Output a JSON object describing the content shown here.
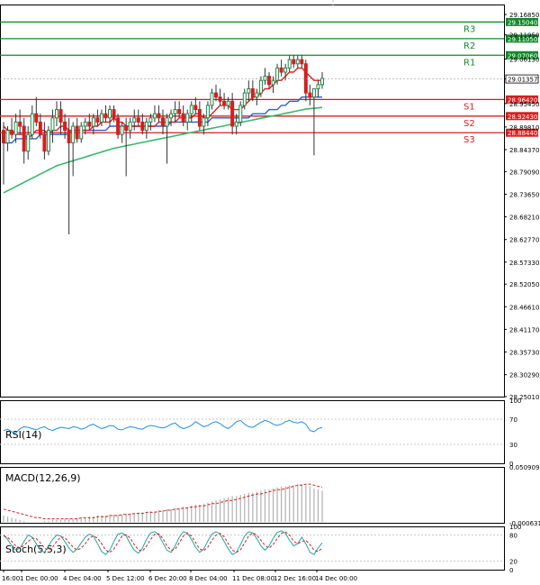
{
  "colors": {
    "background": "#ffffff",
    "axis": "#000000",
    "grid": "#d9d9d9",
    "bull_candle": "#1e8a4c",
    "bear_candle": "#d51f1f",
    "ma_fast": "#e02020",
    "ma_mid": "#2c5fd6",
    "ma_slow": "#38b86b",
    "resistance_line": "#138a2b",
    "support_line": "#d51f1f",
    "last_price_tag": "#000000",
    "rsi_line": "#1f8fe6",
    "macd_hist": "#b0b0b0",
    "macd_signal": "#d51f1f",
    "stoch_main": "#20a4a4",
    "stoch_signal": "#d51f1f"
  },
  "chart_data": {
    "type": "candlestick",
    "price_axis": {
      "ticks": [
        "29.16850",
        "29.11950",
        "29.06130",
        "29.01357",
        "28.95450",
        "28.89810",
        "28.84370",
        "28.79090",
        "28.73650",
        "28.68210",
        "28.62770",
        "28.57330",
        "28.52050",
        "28.46610",
        "28.41170",
        "28.35730",
        "28.30290",
        "28.25010"
      ],
      "ylim": [
        28.2501,
        29.1925
      ]
    },
    "time_axis": {
      "labels": [
        "16:00",
        "1 Dec 00:00",
        "4 Dec 04:00",
        "5 Dec 12:00",
        "6 Dec 20:00",
        "8 Dec 04:00",
        "11 Dec 08:00",
        "12 Dec 16:00",
        "14 Dec 00:00"
      ]
    },
    "last_price": "29.01357",
    "levels": [
      {
        "name": "R3",
        "price": "29.15040",
        "kind": "resistance"
      },
      {
        "name": "R2",
        "price": "29.11050",
        "kind": "resistance"
      },
      {
        "name": "R1",
        "price": "29.07060",
        "kind": "resistance"
      },
      {
        "name": "S1",
        "price": "28.96420",
        "kind": "support"
      },
      {
        "name": "S2",
        "price": "28.92430",
        "kind": "support"
      },
      {
        "name": "S3",
        "price": "28.88440",
        "kind": "support"
      }
    ],
    "candles": [
      [
        28.89,
        28.91,
        28.76,
        28.86
      ],
      [
        28.86,
        28.9,
        28.84,
        28.89
      ],
      [
        28.89,
        28.92,
        28.87,
        28.88
      ],
      [
        28.88,
        28.93,
        28.86,
        28.91
      ],
      [
        28.91,
        28.94,
        28.88,
        28.9
      ],
      [
        28.9,
        28.92,
        28.81,
        28.84
      ],
      [
        28.84,
        28.9,
        28.82,
        28.88
      ],
      [
        28.88,
        28.95,
        28.87,
        28.93
      ],
      [
        28.93,
        28.97,
        28.9,
        28.91
      ],
      [
        28.91,
        28.93,
        28.87,
        28.88
      ],
      [
        28.88,
        28.91,
        28.82,
        28.84
      ],
      [
        28.84,
        28.9,
        28.83,
        28.89
      ],
      [
        28.89,
        28.94,
        28.86,
        28.92
      ],
      [
        28.92,
        28.96,
        28.9,
        28.94
      ],
      [
        28.94,
        28.96,
        28.88,
        28.91
      ],
      [
        28.91,
        28.93,
        28.87,
        28.89
      ],
      [
        28.89,
        28.92,
        28.64,
        28.86
      ],
      [
        28.86,
        28.91,
        28.78,
        28.9
      ],
      [
        28.9,
        28.92,
        28.86,
        28.87
      ],
      [
        28.87,
        28.91,
        28.86,
        28.9
      ],
      [
        28.9,
        28.92,
        28.88,
        28.91
      ],
      [
        28.91,
        28.93,
        28.89,
        28.9
      ],
      [
        28.9,
        28.93,
        28.88,
        28.92
      ],
      [
        28.92,
        28.94,
        28.9,
        28.91
      ],
      [
        28.91,
        28.94,
        28.9,
        28.93
      ],
      [
        28.93,
        28.95,
        28.91,
        28.92
      ],
      [
        28.92,
        28.95,
        28.9,
        28.94
      ],
      [
        28.94,
        28.95,
        28.91,
        28.92
      ],
      [
        28.92,
        28.93,
        28.87,
        28.88
      ],
      [
        28.88,
        28.91,
        28.86,
        28.9
      ],
      [
        28.9,
        28.92,
        28.78,
        28.89
      ],
      [
        28.89,
        28.92,
        28.87,
        28.91
      ],
      [
        28.91,
        28.94,
        28.89,
        28.92
      ],
      [
        28.92,
        28.94,
        28.9,
        28.91
      ],
      [
        28.91,
        28.93,
        28.88,
        28.89
      ],
      [
        28.89,
        28.92,
        28.87,
        28.91
      ],
      [
        28.91,
        28.93,
        28.89,
        28.92
      ],
      [
        28.92,
        28.95,
        28.91,
        28.93
      ],
      [
        28.93,
        28.95,
        28.91,
        28.92
      ],
      [
        28.92,
        28.94,
        28.88,
        28.9
      ],
      [
        28.9,
        28.93,
        28.81,
        28.92
      ],
      [
        28.92,
        28.94,
        28.9,
        28.93
      ],
      [
        28.93,
        28.96,
        28.91,
        28.94
      ],
      [
        28.94,
        28.96,
        28.92,
        28.93
      ],
      [
        28.93,
        28.95,
        28.9,
        28.91
      ],
      [
        28.91,
        28.94,
        28.89,
        28.93
      ],
      [
        28.93,
        28.96,
        28.91,
        28.95
      ],
      [
        28.95,
        28.97,
        28.93,
        28.94
      ],
      [
        28.94,
        28.96,
        28.89,
        28.9
      ],
      [
        28.9,
        28.93,
        28.88,
        28.92
      ],
      [
        28.92,
        28.96,
        28.9,
        28.95
      ],
      [
        28.95,
        28.99,
        28.94,
        28.98
      ],
      [
        28.98,
        29.0,
        28.96,
        28.97
      ],
      [
        28.97,
        28.99,
        28.95,
        28.96
      ],
      [
        28.96,
        28.98,
        28.94,
        28.95
      ],
      [
        28.95,
        28.97,
        28.94,
        28.96
      ],
      [
        28.96,
        28.98,
        28.88,
        28.9
      ],
      [
        28.9,
        28.93,
        28.88,
        28.91
      ],
      [
        28.91,
        28.96,
        28.9,
        28.95
      ],
      [
        28.95,
        28.99,
        28.94,
        28.98
      ],
      [
        28.98,
        29.01,
        28.96,
        28.99
      ],
      [
        28.99,
        29.01,
        28.96,
        28.97
      ],
      [
        28.97,
        28.99,
        28.95,
        28.98
      ],
      [
        28.98,
        29.02,
        28.97,
        29.01
      ],
      [
        29.01,
        29.04,
        29.0,
        29.02
      ],
      [
        29.02,
        29.03,
        28.99,
        29.0
      ],
      [
        29.0,
        29.02,
        28.98,
        29.01
      ],
      [
        29.01,
        29.05,
        29.0,
        29.04
      ],
      [
        29.04,
        29.06,
        29.02,
        29.03
      ],
      [
        29.03,
        29.05,
        29.01,
        29.04
      ],
      [
        29.04,
        29.07,
        29.03,
        29.06
      ],
      [
        29.06,
        29.07,
        29.04,
        29.05
      ],
      [
        29.05,
        29.07,
        29.04,
        29.06
      ],
      [
        29.06,
        29.07,
        29.04,
        29.05
      ],
      [
        29.05,
        29.06,
        28.96,
        28.98
      ],
      [
        28.98,
        29.0,
        28.95,
        28.97
      ],
      [
        28.97,
        28.99,
        28.83,
        28.99
      ],
      [
        28.99,
        29.01,
        28.97,
        29.0
      ],
      [
        29.0,
        29.03,
        28.99,
        29.015
      ]
    ],
    "ma_fast": [
      28.9,
      28.89,
      28.89,
      28.88,
      28.88,
      28.88,
      28.87,
      28.88,
      28.89,
      28.89,
      28.89,
      28.88,
      28.89,
      28.89,
      28.9,
      28.9,
      28.89,
      28.89,
      28.89,
      28.89,
      28.89,
      28.89,
      28.9,
      28.9,
      28.91,
      28.91,
      28.91,
      28.92,
      28.91,
      28.91,
      28.9,
      28.9,
      28.9,
      28.9,
      28.9,
      28.9,
      28.9,
      28.9,
      28.91,
      28.91,
      28.91,
      28.91,
      28.91,
      28.92,
      28.92,
      28.92,
      28.92,
      28.93,
      28.93,
      28.92,
      28.92,
      28.93,
      28.94,
      28.95,
      28.95,
      28.95,
      28.94,
      28.94,
      28.94,
      28.95,
      28.96,
      28.97,
      28.97,
      28.98,
      28.99,
      28.99,
      29.0,
      29.01,
      29.01,
      29.02,
      29.03,
      29.03,
      29.04,
      29.04,
      29.03,
      29.02,
      29.01,
      29.01,
      29.01
    ],
    "ma_mid": [
      28.86,
      28.86,
      28.86,
      28.87,
      28.87,
      28.87,
      28.87,
      28.87,
      28.87,
      28.88,
      28.88,
      28.88,
      28.88,
      28.88,
      28.88,
      28.88,
      28.88,
      28.89,
      28.89,
      28.89,
      28.89,
      28.89,
      28.89,
      28.89,
      28.89,
      28.89,
      28.9,
      28.9,
      28.9,
      28.9,
      28.9,
      28.9,
      28.9,
      28.9,
      28.9,
      28.9,
      28.9,
      28.9,
      28.9,
      28.9,
      28.9,
      28.91,
      28.91,
      28.91,
      28.91,
      28.91,
      28.91,
      28.91,
      28.91,
      28.91,
      28.91,
      28.92,
      28.92,
      28.92,
      28.92,
      28.92,
      28.92,
      28.92,
      28.92,
      28.92,
      28.92,
      28.93,
      28.93,
      28.93,
      28.93,
      28.94,
      28.94,
      28.94,
      28.95,
      28.95,
      28.96,
      28.96,
      28.96,
      28.97,
      28.97,
      28.97,
      28.97,
      28.97,
      28.97
    ],
    "ma_slow": [
      28.74,
      28.745,
      28.75,
      28.755,
      28.76,
      28.765,
      28.77,
      28.775,
      28.78,
      28.785,
      28.79,
      28.795,
      28.8,
      28.805,
      28.808,
      28.811,
      28.814,
      28.817,
      28.82,
      28.823,
      28.826,
      28.829,
      28.832,
      28.835,
      28.838,
      28.841,
      28.844,
      28.847,
      28.849,
      28.851,
      28.853,
      28.855,
      28.857,
      28.859,
      28.861,
      28.863,
      28.865,
      28.867,
      28.869,
      28.871,
      28.873,
      28.875,
      28.877,
      28.879,
      28.881,
      28.883,
      28.885,
      28.887,
      28.889,
      28.891,
      28.893,
      28.895,
      28.897,
      28.899,
      28.901,
      28.903,
      28.905,
      28.907,
      28.909,
      28.911,
      28.913,
      28.915,
      28.917,
      28.919,
      28.921,
      28.923,
      28.925,
      28.927,
      28.929,
      28.931,
      28.933,
      28.935,
      28.937,
      28.939,
      28.941,
      28.942,
      28.943,
      28.944,
      28.945
    ],
    "rsi": {
      "label": "RSI(14)",
      "ticks": [
        "100",
        "70",
        "30",
        "0"
      ],
      "values": [
        52,
        54,
        50,
        48,
        55,
        58,
        57,
        55,
        53,
        56,
        58,
        54,
        52,
        55,
        57,
        56,
        55,
        58,
        57,
        54,
        56,
        60,
        62,
        58,
        55,
        57,
        60,
        59,
        54,
        53,
        56,
        58,
        57,
        55,
        54,
        58,
        60,
        59,
        57,
        56,
        58,
        62,
        64,
        58,
        55,
        57,
        60,
        66,
        62,
        58,
        60,
        64,
        66,
        63,
        58,
        55,
        60,
        66,
        68,
        62,
        58,
        57,
        61,
        65,
        68,
        66,
        62,
        60,
        62,
        66,
        68,
        65,
        64,
        66,
        62,
        52,
        50,
        55,
        57
      ]
    },
    "macd": {
      "label": "MACD(12,26,9)",
      "ticks": [
        "0.050909",
        "-0.000631"
      ],
      "hist": [
        0.006,
        0.005,
        0.004,
        0.003,
        0.002,
        0.001,
        0.0,
        0.0,
        0.0,
        0.0,
        0.001,
        0.001,
        0.002,
        0.002,
        0.002,
        0.003,
        0.003,
        0.003,
        0.004,
        0.004,
        0.004,
        0.005,
        0.005,
        0.006,
        0.006,
        0.006,
        0.007,
        0.007,
        0.007,
        0.007,
        0.008,
        0.008,
        0.008,
        0.009,
        0.009,
        0.009,
        0.01,
        0.01,
        0.011,
        0.011,
        0.012,
        0.012,
        0.013,
        0.013,
        0.014,
        0.014,
        0.015,
        0.016,
        0.016,
        0.017,
        0.018,
        0.019,
        0.02,
        0.021,
        0.022,
        0.023,
        0.024,
        0.024,
        0.025,
        0.026,
        0.027,
        0.027,
        0.028,
        0.029,
        0.03,
        0.03,
        0.031,
        0.032,
        0.033,
        0.033,
        0.034,
        0.034,
        0.035,
        0.035,
        0.034,
        0.033,
        0.031,
        0.03,
        0.029
      ],
      "signal": [
        0.012,
        0.011,
        0.01,
        0.009,
        0.008,
        0.007,
        0.006,
        0.005,
        0.004,
        0.004,
        0.003,
        0.003,
        0.003,
        0.003,
        0.003,
        0.003,
        0.003,
        0.003,
        0.003,
        0.004,
        0.004,
        0.004,
        0.004,
        0.005,
        0.005,
        0.005,
        0.006,
        0.006,
        0.006,
        0.007,
        0.007,
        0.007,
        0.008,
        0.008,
        0.008,
        0.009,
        0.009,
        0.009,
        0.01,
        0.01,
        0.011,
        0.011,
        0.012,
        0.012,
        0.013,
        0.013,
        0.014,
        0.014,
        0.015,
        0.015,
        0.016,
        0.017,
        0.017,
        0.018,
        0.019,
        0.02,
        0.02,
        0.021,
        0.022,
        0.023,
        0.024,
        0.025,
        0.026,
        0.026,
        0.027,
        0.028,
        0.029,
        0.03,
        0.03,
        0.031,
        0.032,
        0.033,
        0.034,
        0.034,
        0.035,
        0.035,
        0.034,
        0.033,
        0.032
      ]
    },
    "stoch": {
      "label": "Stoch(5,5,3)",
      "ticks": [
        "100",
        "80",
        "20",
        "0"
      ],
      "main": [
        80,
        70,
        55,
        45,
        50,
        65,
        80,
        75,
        60,
        45,
        40,
        55,
        70,
        80,
        78,
        65,
        50,
        40,
        48,
        62,
        75,
        82,
        78,
        60,
        42,
        35,
        45,
        65,
        82,
        85,
        78,
        60,
        45,
        38,
        50,
        70,
        85,
        88,
        80,
        62,
        45,
        40,
        55,
        75,
        88,
        85,
        70,
        52,
        40,
        48,
        66,
        82,
        88,
        82,
        65,
        48,
        35,
        40,
        58,
        78,
        88,
        85,
        72,
        55,
        45,
        55,
        72,
        86,
        90,
        84,
        68,
        55,
        60,
        75,
        60,
        40,
        35,
        50,
        62
      ],
      "signal": [
        78,
        75,
        65,
        55,
        50,
        56,
        65,
        73,
        72,
        62,
        50,
        45,
        52,
        65,
        76,
        74,
        63,
        52,
        45,
        50,
        60,
        73,
        78,
        73,
        60,
        45,
        40,
        48,
        63,
        78,
        81,
        73,
        58,
        46,
        43,
        55,
        70,
        82,
        83,
        72,
        55,
        45,
        47,
        62,
        78,
        84,
        78,
        63,
        48,
        44,
        52,
        68,
        80,
        84,
        76,
        60,
        45,
        40,
        46,
        62,
        78,
        85,
        80,
        68,
        56,
        50,
        58,
        72,
        84,
        87,
        80,
        66,
        60,
        65,
        68,
        58,
        45,
        42,
        50
      ]
    }
  }
}
